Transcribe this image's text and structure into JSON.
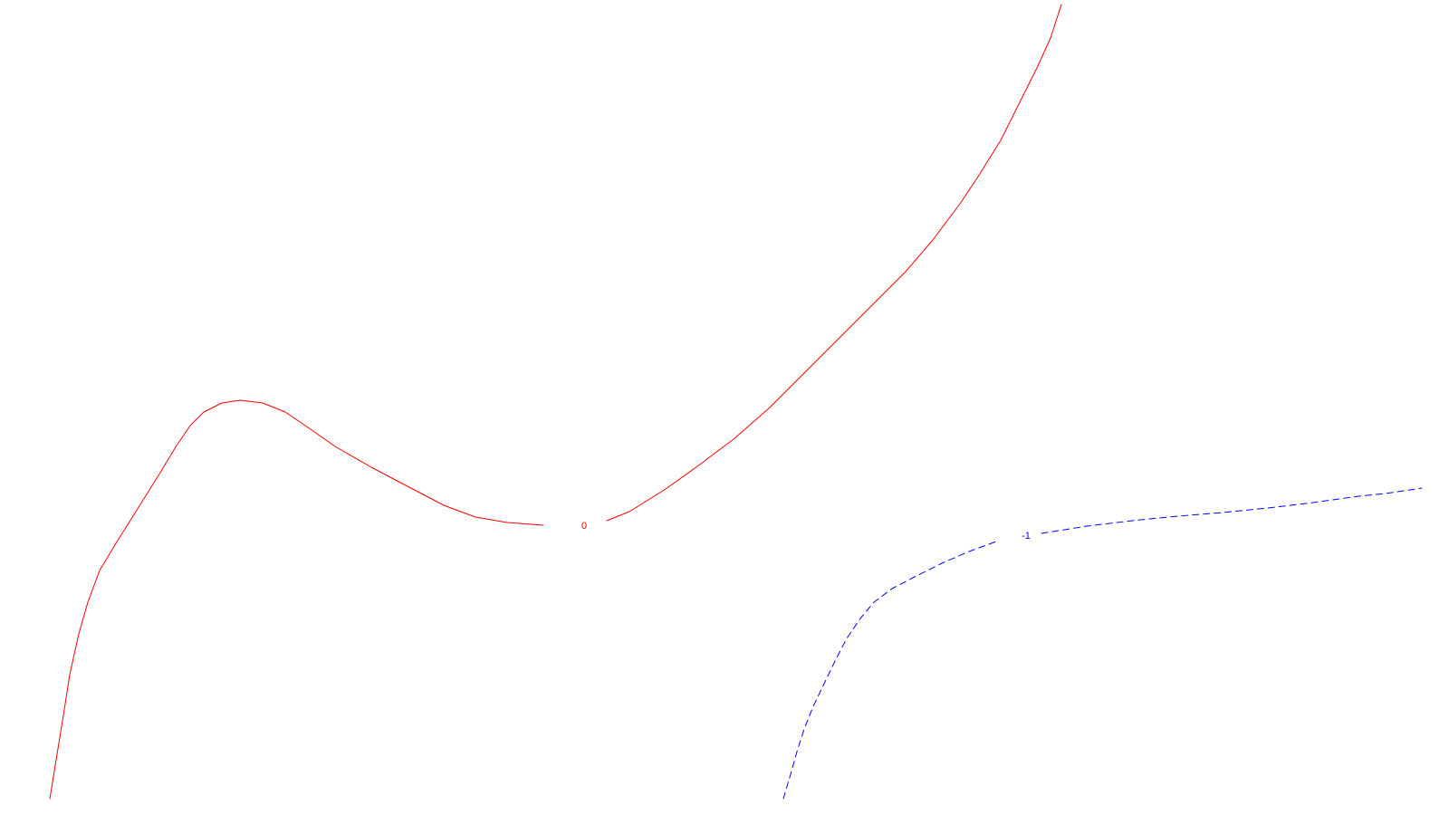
{
  "chart_data": {
    "type": "line",
    "title": "",
    "xlabel": "",
    "ylabel": "",
    "grid": false,
    "legend": false,
    "series": [
      {
        "level_label": "0",
        "color": "#ff0000",
        "style": "solid",
        "points": [
          [
            55,
            882
          ],
          [
            63,
            833
          ],
          [
            70,
            790
          ],
          [
            77,
            745
          ],
          [
            87,
            700
          ],
          [
            97,
            665
          ],
          [
            110,
            630
          ],
          [
            128,
            600
          ],
          [
            150,
            565
          ],
          [
            175,
            525
          ],
          [
            195,
            492
          ],
          [
            210,
            470
          ],
          [
            225,
            455
          ],
          [
            245,
            445
          ],
          [
            265,
            442
          ],
          [
            290,
            445
          ],
          [
            315,
            455
          ],
          [
            340,
            472
          ],
          [
            370,
            493
          ],
          [
            410,
            516
          ],
          [
            450,
            537
          ],
          [
            490,
            558
          ],
          [
            525,
            571
          ],
          [
            560,
            577
          ],
          [
            600,
            580
          ],
          [
            645,
            580
          ],
          [
            670,
            575
          ],
          [
            695,
            565
          ],
          [
            735,
            540
          ],
          [
            770,
            515
          ],
          [
            810,
            485
          ],
          [
            850,
            450
          ],
          [
            900,
            400
          ],
          [
            950,
            350
          ],
          [
            1000,
            300
          ],
          [
            1030,
            265
          ],
          [
            1060,
            225
          ],
          [
            1080,
            195
          ],
          [
            1105,
            155
          ],
          [
            1125,
            115
          ],
          [
            1145,
            75
          ],
          [
            1160,
            42
          ],
          [
            1172,
            5
          ]
        ],
        "label_position": [
          645,
          580
        ]
      },
      {
        "level_label": "-1",
        "color": "#0000ff",
        "style": "dashed",
        "points": [
          [
            865,
            882
          ],
          [
            873,
            855
          ],
          [
            880,
            830
          ],
          [
            888,
            805
          ],
          [
            898,
            780
          ],
          [
            910,
            755
          ],
          [
            922,
            730
          ],
          [
            935,
            705
          ],
          [
            950,
            683
          ],
          [
            965,
            665
          ],
          [
            985,
            650
          ],
          [
            1010,
            637
          ],
          [
            1040,
            622
          ],
          [
            1070,
            609
          ],
          [
            1100,
            598
          ],
          [
            1125,
            593
          ],
          [
            1150,
            589
          ],
          [
            1200,
            581
          ],
          [
            1250,
            575
          ],
          [
            1300,
            570
          ],
          [
            1350,
            566
          ],
          [
            1400,
            561
          ],
          [
            1450,
            555
          ],
          [
            1500,
            548
          ],
          [
            1530,
            545
          ],
          [
            1570,
            539
          ]
        ],
        "label_position": [
          1133,
          591
        ]
      }
    ]
  }
}
